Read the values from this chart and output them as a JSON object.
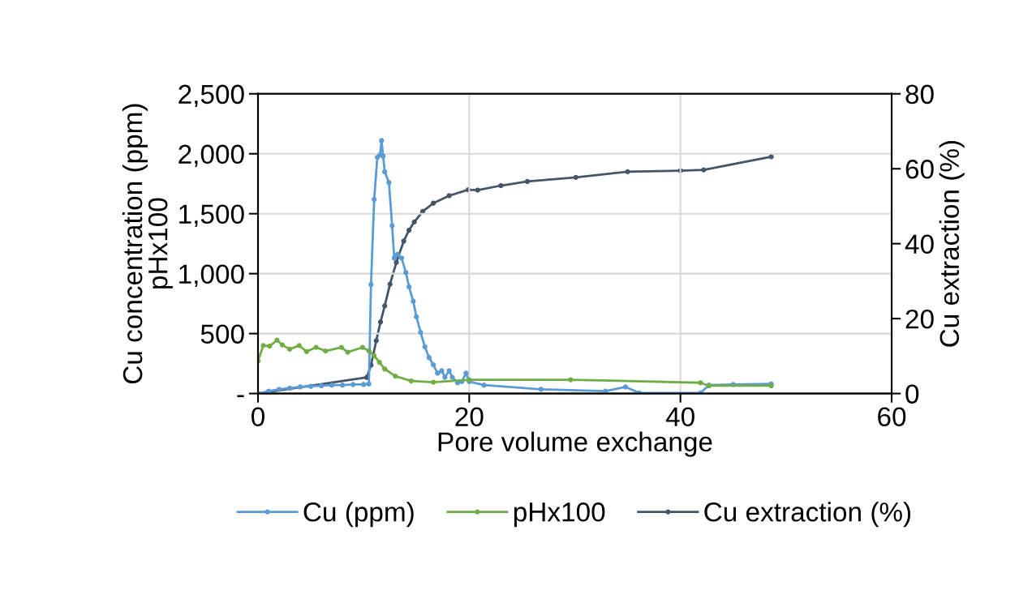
{
  "chart_data": {
    "type": "line",
    "xlabel": "Pore volume exchange",
    "ylabel": "Cu concentration (ppm)\npHx100",
    "y2label": "Cu extraction (%)",
    "xlim": [
      0,
      60
    ],
    "xticks": [
      0,
      20,
      40,
      60
    ],
    "ylim": [
      0,
      2500
    ],
    "yticks": [
      {
        "value": 0,
        "label": "-"
      },
      {
        "value": 500,
        "label": "500"
      },
      {
        "value": 1000,
        "label": "1,000"
      },
      {
        "value": 1500,
        "label": "1,500"
      },
      {
        "value": 2000,
        "label": "2,000"
      },
      {
        "value": 2500,
        "label": "2,500"
      }
    ],
    "y2lim": [
      0,
      80
    ],
    "y2ticks": [
      0,
      20,
      40,
      60,
      80
    ],
    "grid": true,
    "legend": "bottom",
    "marker": "circle",
    "line_style": "solid",
    "series": [
      {
        "name": "Cu (ppm)",
        "color": "#5b9bd5",
        "x": [
          0,
          1,
          2,
          3,
          4,
          5,
          6,
          7,
          8,
          9,
          10,
          10.5,
          10.7,
          11.0,
          11.3,
          11.55,
          11.7,
          11.85,
          12.0,
          12.4,
          12.7,
          12.9,
          13.2,
          13.6,
          14.0,
          14.3,
          14.7,
          15.0,
          15.4,
          15.8,
          16.2,
          16.6,
          17.0,
          17.4,
          17.7,
          18.1,
          18.4,
          18.9,
          19.3,
          19.7,
          20.0,
          21.4,
          26.8,
          32.9,
          34.8,
          36.1,
          41.9,
          42.7,
          45,
          48.6
        ],
        "values": [
          0,
          20,
          35,
          45,
          55,
          60,
          65,
          70,
          70,
          75,
          75,
          80,
          910,
          1620,
          1970,
          1990,
          2110,
          1980,
          1850,
          1760,
          1400,
          1130,
          1160,
          1130,
          1010,
          890,
          770,
          640,
          510,
          390,
          300,
          240,
          170,
          190,
          135,
          190,
          135,
          90,
          100,
          170,
          100,
          70,
          35,
          20,
          55,
          5,
          5,
          70,
          75,
          80
        ]
      },
      {
        "name": "pHx100",
        "color": "#70ad47",
        "x": [
          0,
          0.5,
          1.1,
          1.8,
          2.3,
          3.0,
          3.9,
          4.6,
          5.5,
          6.4,
          7.9,
          8.5,
          9.9,
          10.5,
          11.0,
          11.5,
          12.0,
          13.0,
          14.5,
          16.6,
          20.0,
          29.6,
          41.9,
          42.7,
          48.6
        ],
        "values": [
          270,
          400,
          395,
          445,
          405,
          370,
          400,
          350,
          385,
          355,
          385,
          345,
          385,
          355,
          315,
          260,
          205,
          145,
          105,
          95,
          115,
          115,
          90,
          65,
          65
        ]
      },
      {
        "name": "Cu extraction (%)",
        "color": "#44546a",
        "axis": "y2",
        "x": [
          0,
          10.3,
          10.7,
          11.2,
          11.6,
          12.0,
          12.5,
          13.1,
          13.8,
          14.3,
          14.8,
          15.6,
          16.6,
          18.1,
          19.9,
          20.8,
          23.0,
          25.5,
          30.1,
          35.0,
          40.0,
          42.2,
          48.6
        ],
        "values": [
          0,
          4.3,
          7.6,
          14.1,
          19.1,
          23.4,
          29.2,
          35.0,
          40.7,
          43.6,
          45.8,
          48.6,
          50.8,
          52.8,
          54.4,
          54.3,
          55.5,
          56.6,
          57.7,
          59.2,
          59.5,
          59.7,
          63.2
        ]
      }
    ]
  }
}
